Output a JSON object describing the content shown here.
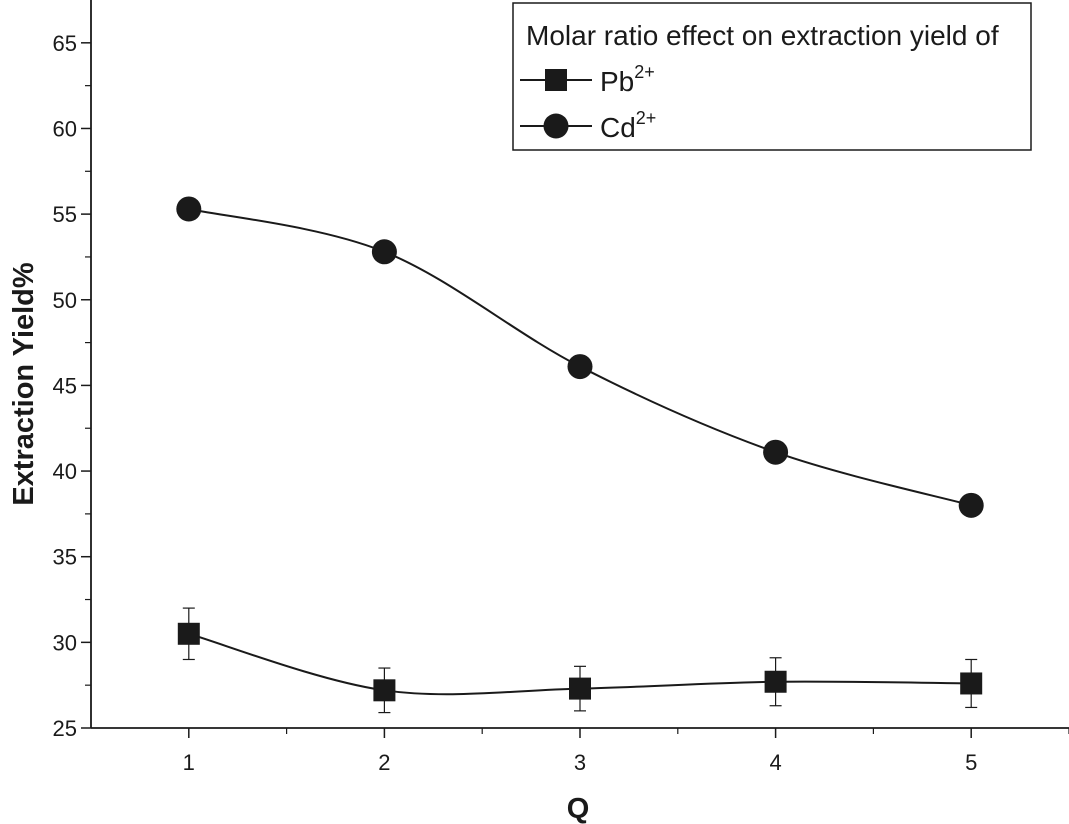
{
  "chart_data": {
    "type": "line",
    "x": [
      1,
      2,
      3,
      4,
      5
    ],
    "xlabel": "Q",
    "ylabel": "Extraction Yield%",
    "xlim": [
      0.5,
      5.5
    ],
    "ylim": [
      25,
      67.5
    ],
    "x_ticks": [
      1,
      2,
      3,
      4,
      5
    ],
    "y_ticks": [
      25,
      30,
      35,
      40,
      45,
      50,
      55,
      60,
      65
    ],
    "grid": false,
    "legend": {
      "title": "Molar ratio effect on extraction yield of",
      "position": "top-right"
    },
    "series": [
      {
        "name_base": "Pb",
        "name_sup": "2+",
        "marker": "square",
        "values": [
          30.5,
          27.2,
          27.3,
          27.7,
          27.6
        ],
        "error": [
          1.5,
          1.3,
          1.3,
          1.4,
          1.4
        ]
      },
      {
        "name_base": "Cd",
        "name_sup": "2+",
        "marker": "circle",
        "values": [
          55.3,
          52.8,
          46.1,
          41.1,
          38.0
        ],
        "error": [
          0,
          0,
          0,
          0,
          0
        ]
      }
    ],
    "colors": {
      "ink": "#1a1a1a",
      "background": "#ffffff"
    }
  }
}
